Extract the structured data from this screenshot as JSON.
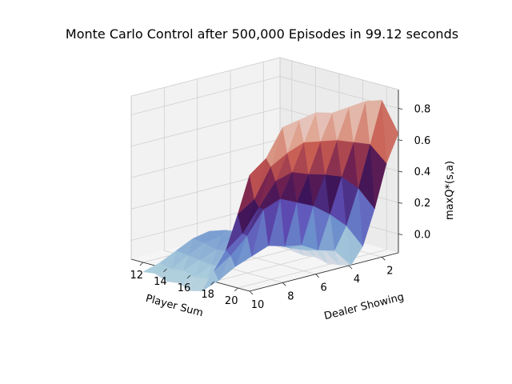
{
  "chart_data": {
    "type": "surface3d",
    "title": "Monte Carlo Control after 500,000 Episodes in 99.12 seconds",
    "xlabel": "Player Sum",
    "ylabel": "Dealer Showing",
    "zlabel": "maxQ*(s,a)",
    "x_ticks": [
      "12",
      "14",
      "16",
      "18",
      "20"
    ],
    "y_ticks": [
      "2",
      "4",
      "6",
      "8",
      "10"
    ],
    "z_ticks": [
      "0.0",
      "0.2",
      "0.4",
      "0.6",
      "0.8"
    ],
    "xlim": [
      11,
      21
    ],
    "ylim": [
      1,
      10
    ],
    "zlim": [
      -0.12,
      0.92
    ],
    "x": [
      12,
      13,
      14,
      15,
      16,
      17,
      18,
      19,
      20,
      21
    ],
    "y": [
      1,
      2,
      3,
      4,
      5,
      6,
      7,
      8,
      9,
      10
    ],
    "z": [
      [
        -0.29,
        -0.17,
        -0.12,
        -0.09,
        -0.05,
        -0.03,
        -0.05,
        -0.1,
        -0.15,
        -0.18
      ],
      [
        -0.3,
        -0.16,
        -0.13,
        -0.08,
        -0.06,
        -0.04,
        -0.06,
        -0.11,
        -0.17,
        -0.17
      ],
      [
        -0.29,
        -0.19,
        -0.14,
        -0.1,
        -0.07,
        -0.02,
        -0.08,
        -0.12,
        -0.16,
        -0.2
      ],
      [
        -0.31,
        -0.18,
        -0.12,
        -0.09,
        -0.04,
        -0.03,
        -0.07,
        -0.13,
        -0.18,
        -0.19
      ],
      [
        -0.3,
        -0.17,
        -0.15,
        -0.11,
        -0.06,
        -0.05,
        -0.05,
        -0.12,
        -0.17,
        -0.22
      ],
      [
        -0.28,
        -0.16,
        -0.13,
        -0.07,
        -0.05,
        -0.02,
        -0.06,
        -0.1,
        -0.16,
        -0.2
      ],
      [
        -0.14,
        0.02,
        0.12,
        0.2,
        0.25,
        0.3,
        0.26,
        0.12,
        0.02,
        -0.05
      ],
      [
        0.12,
        0.28,
        0.38,
        0.42,
        0.45,
        0.49,
        0.46,
        0.32,
        0.18,
        0.1
      ],
      [
        0.43,
        0.58,
        0.62,
        0.66,
        0.68,
        0.7,
        0.66,
        0.6,
        0.42,
        0.35
      ],
      [
        0.64,
        0.88,
        0.9,
        0.89,
        0.88,
        0.91,
        0.89,
        0.87,
        0.7,
        0.62
      ]
    ],
    "colormap": "twilight-like (purple → blue → white → peach)",
    "grid": true
  }
}
